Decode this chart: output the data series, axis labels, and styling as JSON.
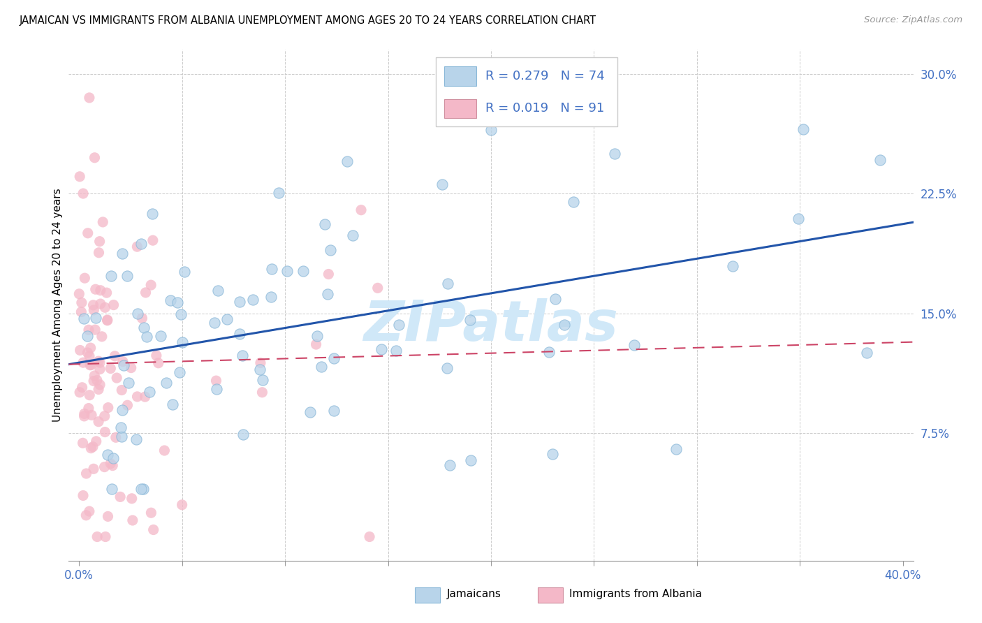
{
  "title": "JAMAICAN VS IMMIGRANTS FROM ALBANIA UNEMPLOYMENT AMONG AGES 20 TO 24 YEARS CORRELATION CHART",
  "source": "Source: ZipAtlas.com",
  "ylabel": "Unemployment Among Ages 20 to 24 years",
  "xlim": [
    -0.005,
    0.405
  ],
  "ylim": [
    -0.005,
    0.315
  ],
  "xticks": [
    0.0,
    0.05,
    0.1,
    0.15,
    0.2,
    0.25,
    0.3,
    0.35,
    0.4
  ],
  "yticks": [
    0.0,
    0.075,
    0.15,
    0.225,
    0.3
  ],
  "r_jamaican": 0.279,
  "n_jamaican": 74,
  "r_albania": 0.019,
  "n_albania": 91,
  "color_jamaican": "#b8d4ea",
  "color_albania": "#f4b8c8",
  "line_color_jamaican": "#2255aa",
  "line_color_albania": "#cc4466",
  "watermark": "ZIPatlas",
  "watermark_color": "#d0e8f8",
  "legend_label_1": "Jamaicans",
  "legend_label_2": "Immigrants from Albania",
  "j_trend_x0": 0.0,
  "j_trend_y0": 0.118,
  "j_trend_x1": 0.4,
  "j_trend_y1": 0.207,
  "a_trend_x0": 0.0,
  "a_trend_y0": 0.118,
  "a_trend_x1": 0.4,
  "a_trend_y1": 0.132
}
